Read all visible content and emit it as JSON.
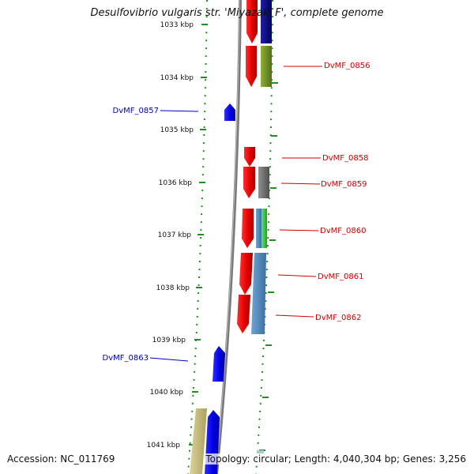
{
  "title": "Desulfovibrio vulgaris str. 'Miyazaki F', complete genome",
  "footer": {
    "accession": "Accession: NC_011769",
    "summary": "Topology: circular; Length: 4,040,304 bp; Genes: 3,256"
  },
  "colors": {
    "backbone": "#7a7a7a",
    "tick": "#1f8f1f",
    "forward_gene": "#e60000",
    "reverse_gene": "#0000e6",
    "label_forward": "#cc0000",
    "label_reverse": "#0000bb",
    "cog_olive": "#6b8e23",
    "cog_gray": "#707070",
    "cog_steelblue": "#4682b4",
    "cog_green": "#2ecc40",
    "cog_navy": "#000080",
    "cog_khaki": "#c9c080"
  },
  "chart_data": {
    "type": "genome_map",
    "scale_labels": [
      "1033 kbp",
      "1034 kbp",
      "1035 kbp",
      "1036 kbp",
      "1037 kbp",
      "1038 kbp",
      "1039 kbp",
      "1040 kbp",
      "1041 kbp"
    ],
    "gene_labels": [
      {
        "name": "DvMF_0856",
        "strand": "forward"
      },
      {
        "name": "DvMF_0857",
        "strand": "reverse"
      },
      {
        "name": "DvMF_0858",
        "strand": "forward"
      },
      {
        "name": "DvMF_0859",
        "strand": "forward"
      },
      {
        "name": "DvMF_0860",
        "strand": "forward"
      },
      {
        "name": "DvMF_0861",
        "strand": "forward"
      },
      {
        "name": "DvMF_0862",
        "strand": "forward"
      },
      {
        "name": "DvMF_0863",
        "strand": "reverse"
      }
    ]
  }
}
